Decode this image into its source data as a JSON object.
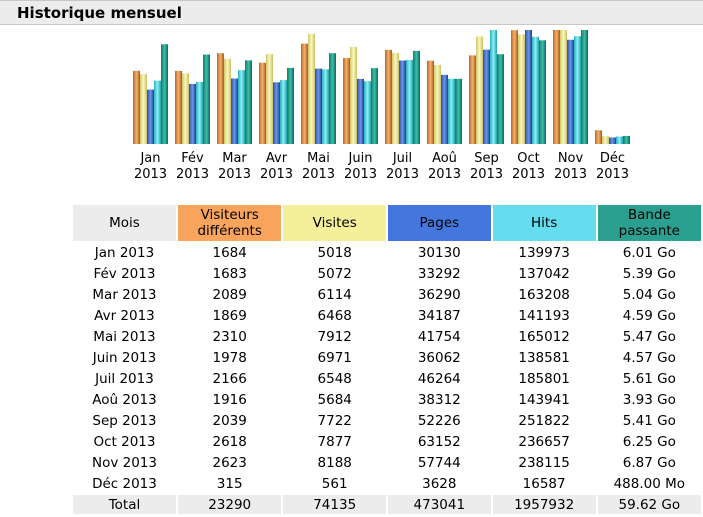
{
  "header": {
    "title": "Historique mensuel"
  },
  "colors": {
    "visitors": "#f8a45c",
    "visits": "#f3ef9b",
    "pages": "#4477dd",
    "hits": "#66ddee",
    "bandwidth": "#2ba090",
    "header_bg": "#ececec"
  },
  "chart_data": {
    "type": "bar",
    "categories": [
      "Jan 2013",
      "Fév 2013",
      "Mar 2013",
      "Avr 2013",
      "Mai 2013",
      "Juin 2013",
      "Juil 2013",
      "Aoû 2013",
      "Sep 2013",
      "Oct 2013",
      "Nov 2013",
      "Déc 2013"
    ],
    "x_month_labels": [
      "Jan",
      "Fév",
      "Mar",
      "Avr",
      "Mai",
      "Juin",
      "Juil",
      "Aoû",
      "Sep",
      "Oct",
      "Nov",
      "Déc"
    ],
    "x_year_labels": [
      "2013",
      "2013",
      "2013",
      "2013",
      "2013",
      "2013",
      "2013",
      "2013",
      "2013",
      "2013",
      "2013",
      "2013"
    ],
    "series": [
      {
        "key": "visitors",
        "values": [
          1684,
          1683,
          2089,
          1869,
          2310,
          1978,
          2166,
          1916,
          2039,
          2618,
          2623,
          315
        ]
      },
      {
        "key": "visits",
        "values": [
          5018,
          5072,
          6114,
          6468,
          7912,
          6971,
          6548,
          5684,
          7722,
          7877,
          8188,
          561
        ]
      },
      {
        "key": "pages",
        "values": [
          30130,
          33292,
          36290,
          34187,
          41754,
          36062,
          46264,
          38312,
          52226,
          63152,
          57744,
          3628
        ]
      },
      {
        "key": "hits",
        "values": [
          139973,
          137042,
          163208,
          141193,
          165012,
          138581,
          185801,
          143941,
          251822,
          236657,
          238115,
          16587
        ]
      },
      {
        "key": "bandwidth_go",
        "values": [
          6.01,
          5.39,
          5.04,
          4.59,
          5.47,
          4.57,
          5.61,
          3.93,
          5.41,
          6.25,
          6.87,
          0.488
        ]
      }
    ]
  },
  "table": {
    "headers": {
      "mois": "Mois",
      "visitors": "Visiteurs différents",
      "visits": "Visites",
      "pages": "Pages",
      "hits": "Hits",
      "bandwidth": "Bande passante"
    },
    "rows": [
      [
        "Jan 2013",
        "1684",
        "5018",
        "30130",
        "139973",
        "6.01 Go"
      ],
      [
        "Fév 2013",
        "1683",
        "5072",
        "33292",
        "137042",
        "5.39 Go"
      ],
      [
        "Mar 2013",
        "2089",
        "6114",
        "36290",
        "163208",
        "5.04 Go"
      ],
      [
        "Avr 2013",
        "1869",
        "6468",
        "34187",
        "141193",
        "4.59 Go"
      ],
      [
        "Mai 2013",
        "2310",
        "7912",
        "41754",
        "165012",
        "5.47 Go"
      ],
      [
        "Juin 2013",
        "1978",
        "6971",
        "36062",
        "138581",
        "4.57 Go"
      ],
      [
        "Juil 2013",
        "2166",
        "6548",
        "46264",
        "185801",
        "5.61 Go"
      ],
      [
        "Aoû 2013",
        "1916",
        "5684",
        "38312",
        "143941",
        "3.93 Go"
      ],
      [
        "Sep 2013",
        "2039",
        "7722",
        "52226",
        "251822",
        "5.41 Go"
      ],
      [
        "Oct 2013",
        "2618",
        "7877",
        "63152",
        "236657",
        "6.25 Go"
      ],
      [
        "Nov 2013",
        "2623",
        "8188",
        "57744",
        "238115",
        "6.87 Go"
      ],
      [
        "Déc 2013",
        "315",
        "561",
        "3628",
        "16587",
        "488.00 Mo"
      ]
    ],
    "total": [
      "Total",
      "23290",
      "74135",
      "473041",
      "1957932",
      "59.62 Go"
    ]
  }
}
